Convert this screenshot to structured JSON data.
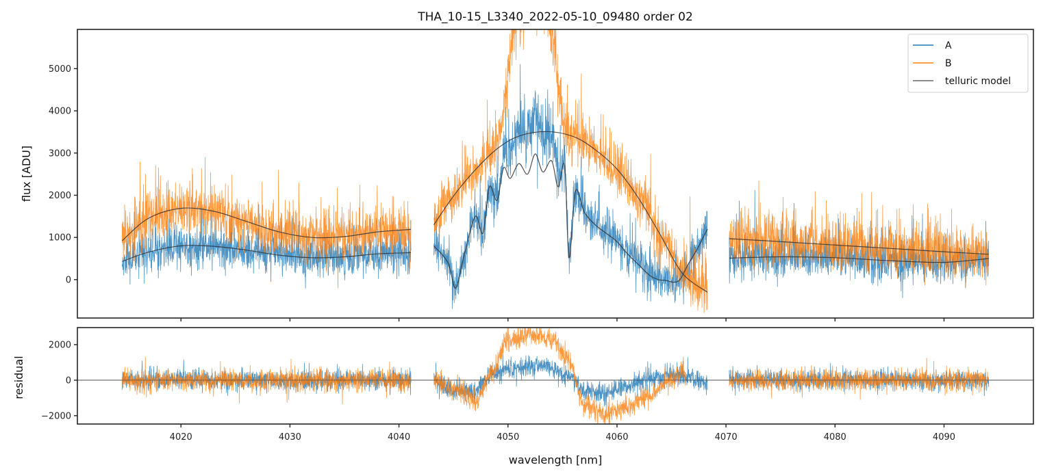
{
  "chart_data": [
    {
      "type": "line",
      "panel": "flux",
      "title": "THA_10-15_L3340_2022-05-10_09480  order 02",
      "xlabel": "",
      "ylabel": "flux [ADU]",
      "xlim": [
        4010.5,
        4098.2
      ],
      "ylim": [
        -910,
        5930
      ],
      "xticks": [
        4020,
        4030,
        4040,
        4050,
        4060,
        4070,
        4080,
        4090
      ],
      "yticks": [
        0,
        1000,
        2000,
        3000,
        4000,
        5000
      ],
      "ytick_labels": [
        "0",
        "1000",
        "2000",
        "3000",
        "4000",
        "5000"
      ],
      "grid": false,
      "legend": {
        "placement": "top-right",
        "entries": [
          {
            "label": "A",
            "color": "#1f77b4"
          },
          {
            "label": "B",
            "color": "#ff7f0e"
          },
          {
            "label": "telluric model",
            "color": "#666666"
          }
        ]
      },
      "segments": [
        {
          "xmin": 4014.6,
          "xmax": 4041.1
        },
        {
          "xmin": 4043.2,
          "xmax": 4068.3
        },
        {
          "xmin": 4070.3,
          "xmax": 4094.1
        }
      ],
      "series": [
        {
          "name": "A",
          "color": "#1f77b4",
          "noise_sigma": 420,
          "seed": 11,
          "envelope_note": "noisy spectrum around A model; peak near 4052 with values up to ~4300"
        },
        {
          "name": "B",
          "color": "#ff7f0e",
          "noise_sigma": 520,
          "seed": 29,
          "envelope_note": "noisy spectrum around B model; peak near 4052 exceeding 5900"
        }
      ],
      "telluric_model": [
        {
          "name": "A model segment 1",
          "x": [
            4014.6,
            4017,
            4020,
            4023,
            4026,
            4029,
            4032,
            4035,
            4038,
            4041.1
          ],
          "y": [
            430,
            650,
            800,
            790,
            700,
            580,
            520,
            540,
            610,
            640
          ]
        },
        {
          "name": "B model segment 1",
          "x": [
            4014.6,
            4017,
            4020,
            4023,
            4026,
            4029,
            4032,
            4035,
            4038,
            4041.1
          ],
          "y": [
            920,
            1450,
            1690,
            1620,
            1380,
            1130,
            1000,
            1020,
            1130,
            1190
          ]
        },
        {
          "name": "B model segment 2",
          "x": [
            4043.2,
            4045,
            4047,
            4049,
            4051,
            4053.5,
            4056,
            4058,
            4060,
            4062,
            4064,
            4066,
            4068.3
          ],
          "y": [
            1300,
            1980,
            2600,
            3100,
            3400,
            3510,
            3390,
            3080,
            2620,
            1920,
            1050,
            150,
            -300
          ]
        },
        {
          "name": "A model segment 2",
          "x": [
            4043.2,
            4044.5,
            4045.2,
            4046,
            4047,
            4047.7,
            4048.3,
            4049,
            4049.6,
            4050.2,
            4051,
            4051.8,
            4052.5,
            4053.2,
            4054,
            4054.6,
            4055.2,
            4055.6,
            4056.2,
            4057,
            4058,
            4059,
            4060,
            4061,
            4062,
            4063,
            4063.8,
            4064.5,
            4065.2,
            4065.8,
            4066.5,
            4067.3,
            4068.3
          ],
          "y": [
            800,
            400,
            -200,
            600,
            1500,
            1100,
            2200,
            1880,
            2650,
            2400,
            2750,
            2500,
            2980,
            2550,
            2820,
            2200,
            2700,
            520,
            2100,
            1600,
            1300,
            1100,
            900,
            600,
            350,
            100,
            0,
            -20,
            -60,
            10,
            350,
            700,
            1200
          ]
        },
        {
          "name": "B model segment 3",
          "x": [
            4070.3,
            4075,
            4080,
            4085,
            4090,
            4094.1
          ],
          "y": [
            970,
            900,
            820,
            740,
            660,
            600
          ]
        },
        {
          "name": "A model segment 3",
          "x": [
            4070.3,
            4075,
            4080,
            4085,
            4090,
            4094.1
          ],
          "y": [
            510,
            540,
            520,
            450,
            410,
            500
          ]
        }
      ]
    },
    {
      "type": "line",
      "panel": "residual",
      "xlabel": "wavelength [nm]",
      "ylabel": "residual",
      "xlim": [
        4010.5,
        4098.2
      ],
      "ylim": [
        -2470,
        2960
      ],
      "xticks": [
        4020,
        4030,
        4040,
        4050,
        4060,
        4070,
        4080,
        4090
      ],
      "xtick_labels": [
        "4020",
        "4030",
        "4040",
        "4050",
        "4060",
        "4070",
        "4080",
        "4090"
      ],
      "yticks": [
        -2000,
        0,
        2000
      ],
      "ytick_labels": [
        "−2000",
        "0",
        "2000"
      ],
      "zero_line": 0,
      "grid": false,
      "series": [
        {
          "name": "A",
          "color": "#1f77b4",
          "noise_sigma": 380,
          "seed": 47,
          "trend_x": [
            4043.2,
            4045,
            4047,
            4048.5,
            4050,
            4052,
            4054,
            4055.5,
            4057,
            4059,
            4061,
            4063,
            4065,
            4067,
            4068.3
          ],
          "trend_y": [
            0,
            -500,
            -600,
            300,
            600,
            800,
            700,
            300,
            -600,
            -700,
            -300,
            100,
            300,
            100,
            -200
          ]
        },
        {
          "name": "B",
          "color": "#ff7f0e",
          "noise_sigma": 420,
          "seed": 83,
          "trend_x": [
            4043.2,
            4045,
            4047,
            4048.5,
            4050,
            4052,
            4054,
            4055.5,
            4057,
            4059,
            4061,
            4063,
            4065,
            4066.3
          ],
          "trend_y": [
            0,
            -500,
            -1100,
            500,
            2200,
            2600,
            2400,
            1200,
            -1400,
            -1900,
            -1500,
            -800,
            0,
            500
          ]
        }
      ]
    }
  ]
}
